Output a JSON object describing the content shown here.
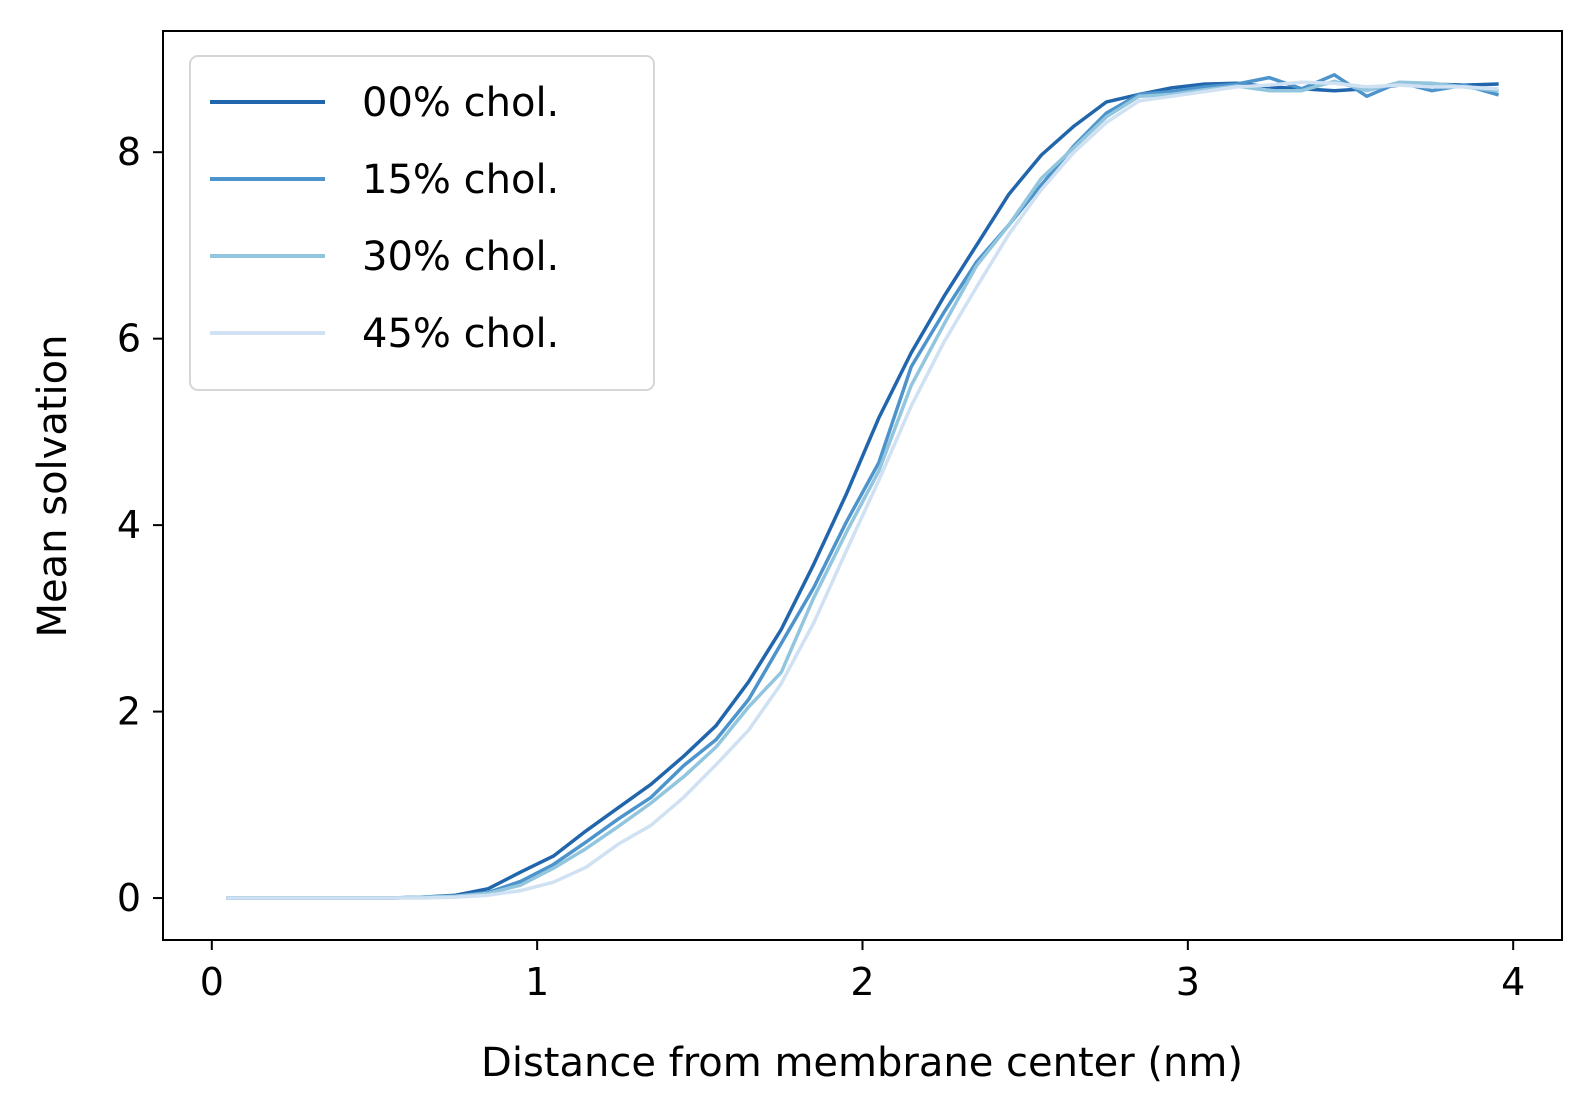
{
  "chart_data": {
    "type": "line",
    "xlabel": "Distance from membrane center (nm)",
    "ylabel": "Mean solvation",
    "xlim": [
      -0.15,
      4.15
    ],
    "ylim": [
      -0.45,
      9.3
    ],
    "xticks": [
      0,
      1,
      2,
      3,
      4
    ],
    "xtick_labels": [
      "0",
      "1",
      "2",
      "3",
      "4"
    ],
    "yticks": [
      0,
      2,
      4,
      6,
      8
    ],
    "ytick_labels": [
      "0",
      "2",
      "4",
      "6",
      "8"
    ],
    "grid": false,
    "legend_position": "top-left",
    "x": [
      0.05,
      0.15,
      0.25,
      0.35,
      0.45,
      0.55,
      0.65,
      0.75,
      0.85,
      0.95,
      1.05,
      1.15,
      1.25,
      1.35,
      1.45,
      1.55,
      1.65,
      1.75,
      1.85,
      1.95,
      2.05,
      2.15,
      2.25,
      2.35,
      2.45,
      2.55,
      2.65,
      2.75,
      2.85,
      2.95,
      3.05,
      3.15,
      3.25,
      3.35,
      3.45,
      3.55,
      3.65,
      3.75,
      3.85,
      3.95
    ],
    "series": [
      {
        "name": "00% chol.",
        "color": "#2166ac",
        "values": [
          0,
          0,
          0,
          0,
          0,
          0,
          0.01,
          0.03,
          0.1,
          0.28,
          0.45,
          0.72,
          0.97,
          1.22,
          1.52,
          1.85,
          2.32,
          2.88,
          3.58,
          4.33,
          5.15,
          5.85,
          6.45,
          7.0,
          7.55,
          7.97,
          8.28,
          8.54,
          8.62,
          8.69,
          8.73,
          8.74,
          8.7,
          8.68,
          8.66,
          8.68,
          8.72,
          8.73,
          8.72,
          8.73
        ]
      },
      {
        "name": "15% chol.",
        "color": "#4d94cc",
        "values": [
          0,
          0,
          0,
          0,
          0,
          0,
          0.01,
          0.02,
          0.06,
          0.18,
          0.36,
          0.6,
          0.85,
          1.08,
          1.42,
          1.7,
          2.13,
          2.73,
          3.33,
          4.03,
          4.67,
          5.7,
          6.28,
          6.82,
          7.22,
          7.65,
          8.07,
          8.42,
          8.62,
          8.65,
          8.7,
          8.73,
          8.8,
          8.68,
          8.83,
          8.6,
          8.75,
          8.66,
          8.72,
          8.62
        ]
      },
      {
        "name": "30% chol.",
        "color": "#92c5de",
        "values": [
          0,
          0,
          0,
          0,
          0,
          0,
          0.01,
          0.02,
          0.05,
          0.14,
          0.32,
          0.53,
          0.77,
          1.02,
          1.3,
          1.62,
          2.05,
          2.42,
          3.22,
          3.92,
          4.58,
          5.5,
          6.15,
          6.78,
          7.22,
          7.72,
          8.05,
          8.38,
          8.6,
          8.62,
          8.67,
          8.71,
          8.66,
          8.66,
          8.76,
          8.66,
          8.75,
          8.74,
          8.7,
          8.66
        ]
      },
      {
        "name": "45% chol.",
        "color": "#cfe1f2",
        "values": [
          0,
          0,
          0,
          0,
          0,
          0,
          0,
          0.01,
          0.03,
          0.08,
          0.17,
          0.33,
          0.58,
          0.78,
          1.08,
          1.43,
          1.8,
          2.3,
          2.95,
          3.72,
          4.48,
          5.28,
          5.96,
          6.55,
          7.12,
          7.6,
          8.0,
          8.32,
          8.55,
          8.6,
          8.65,
          8.7,
          8.72,
          8.75,
          8.74,
          8.7,
          8.72,
          8.7,
          8.7,
          8.68
        ]
      }
    ]
  }
}
